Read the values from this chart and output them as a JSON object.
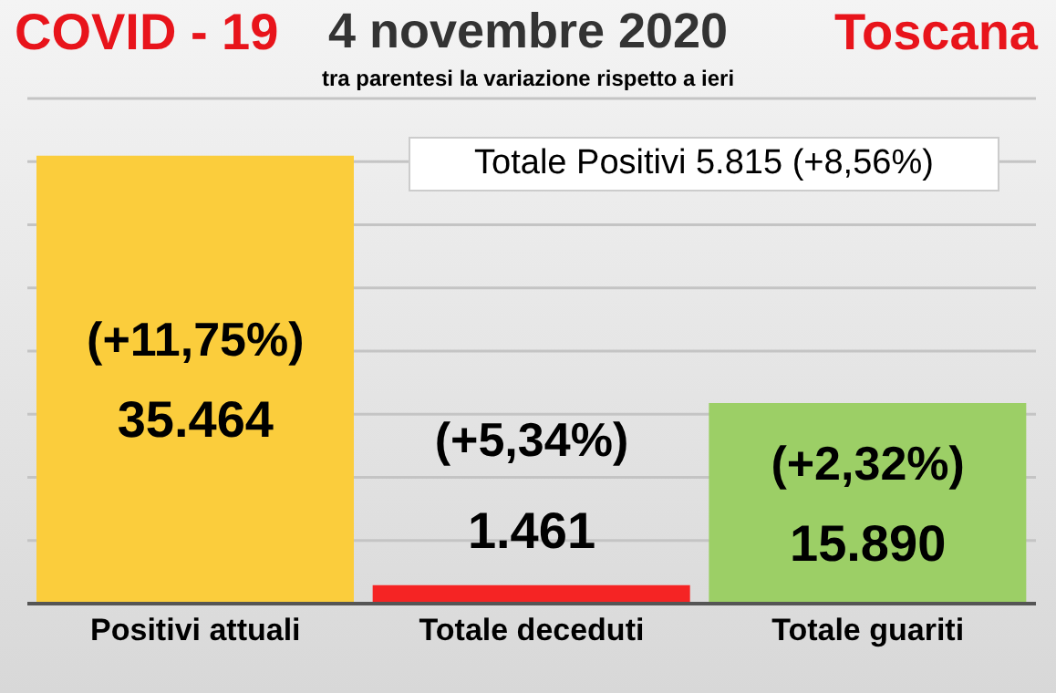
{
  "chart_data": {
    "type": "bar",
    "title": "4 novembre 2020",
    "subtitle": "tra parentesi la variazione rispetto a ieri",
    "categories": [
      "Positivi attuali",
      "Totale deceduti",
      "Totale guariti"
    ],
    "values": [
      35464,
      1461,
      15890
    ],
    "colors": [
      "#fbcd3c",
      "#f52424",
      "#9ccf66"
    ],
    "value_labels": [
      "35.464",
      "1.461",
      "15.890"
    ],
    "ylim": [
      0,
      40000
    ],
    "yticks": [
      {
        "value": 0,
        "label": null
      },
      {
        "value": 5000,
        "label": null
      },
      {
        "value": 10000,
        "label": null
      },
      {
        "value": 15000,
        "label": null
      },
      {
        "value": 20000,
        "label": null
      },
      {
        "value": 25000,
        "label": null
      },
      {
        "value": 30000,
        "label": null
      },
      {
        "value": 35000,
        "label": null
      },
      {
        "value": 40000,
        "label": null
      }
    ],
    "tick_labels": "x",
    "grid": "y",
    "legend": false,
    "annotations": [
      "COVID - 19",
      "Toscana",
      "Totale Positivi 5.815 (+8,56%)",
      "(+11,75%)",
      "(+5,34%)",
      "(+2,32%)"
    ]
  }
}
